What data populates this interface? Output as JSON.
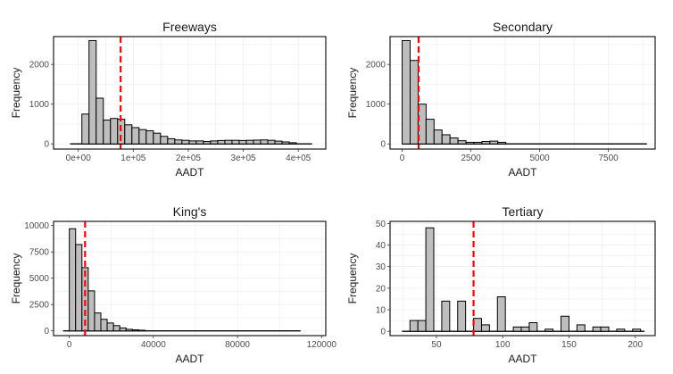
{
  "chart_data": [
    {
      "type": "bar",
      "title": "Freeways",
      "xlabel": "AADT",
      "ylabel": "Frequency",
      "xlim": [
        -45000,
        450000
      ],
      "ylim": [
        -130,
        2700
      ],
      "xticks": [
        0,
        100000,
        200000,
        300000,
        400000
      ],
      "xtick_labels": [
        "0e+00",
        "1e+05",
        "2e+05",
        "3e+05",
        "4e+05"
      ],
      "yticks": [
        0,
        1000,
        2000
      ],
      "ytick_labels": [
        "0",
        "1000",
        "2000"
      ],
      "bin_width": 13000,
      "bin_centers": [
        13000,
        26000,
        39000,
        52000,
        65000,
        78000,
        91000,
        104000,
        117000,
        130000,
        143000,
        156000,
        169000,
        182000,
        195000,
        208000,
        221000,
        234000,
        247000,
        260000,
        273000,
        286000,
        299000,
        312000,
        325000,
        338000,
        351000,
        364000,
        377000,
        390000
      ],
      "values": [
        750,
        2600,
        1150,
        600,
        640,
        620,
        480,
        410,
        360,
        330,
        270,
        190,
        130,
        100,
        90,
        75,
        75,
        60,
        75,
        85,
        90,
        90,
        85,
        90,
        95,
        100,
        90,
        70,
        50,
        30
      ],
      "baseline_range": [
        -15000,
        425000
      ],
      "mean_line": 77000,
      "grid": true,
      "mean_color": "#ff0000"
    },
    {
      "type": "bar",
      "title": "Secondary",
      "xlabel": "AADT",
      "ylabel": "Frequency",
      "xlim": [
        -440,
        9200
      ],
      "ylim": [
        -130,
        2700
      ],
      "xticks": [
        0,
        2500,
        5000,
        7500
      ],
      "xtick_labels": [
        "0",
        "2500",
        "5000",
        "7500"
      ],
      "yticks": [
        0,
        1000,
        2000
      ],
      "ytick_labels": [
        "0",
        "1000",
        "2000"
      ],
      "bin_width": 290,
      "bin_centers": [
        145,
        435,
        725,
        1015,
        1305,
        1595,
        1885,
        2175,
        2465,
        2755,
        3045,
        3335,
        3625
      ],
      "values": [
        2600,
        2100,
        1000,
        620,
        350,
        230,
        150,
        80,
        40,
        40,
        60,
        70,
        40
      ],
      "baseline_range": [
        0,
        8900
      ],
      "mean_line": 600,
      "grid": true,
      "mean_color": "#ff0000"
    },
    {
      "type": "bar",
      "title": "King's",
      "xlabel": "AADT",
      "ylabel": "Frequency",
      "xlim": [
        -7500,
        122000
      ],
      "ylim": [
        -450,
        10400
      ],
      "xticks": [
        0,
        40000,
        80000,
        120000
      ],
      "xtick_labels": [
        "0",
        "40000",
        "80000",
        "120000"
      ],
      "yticks": [
        0,
        2500,
        5000,
        7500,
        10000
      ],
      "ytick_labels": [
        "0",
        "2500",
        "5000",
        "7500",
        "10000"
      ],
      "bin_width": 3000,
      "bin_centers": [
        1500,
        4500,
        7500,
        10500,
        13500,
        16500,
        19500,
        22500,
        25500,
        28500,
        31500,
        34500
      ],
      "values": [
        9700,
        8200,
        6000,
        3800,
        1700,
        1100,
        750,
        500,
        280,
        150,
        100,
        60
      ],
      "baseline_range": [
        -3000,
        110000
      ],
      "mean_line": 7500,
      "grid": true,
      "mean_color": "#ff0000"
    },
    {
      "type": "bar",
      "title": "Tertiary",
      "xlabel": "AADT",
      "ylabel": "Frequency",
      "xlim": [
        15,
        215
      ],
      "ylim": [
        -2,
        51
      ],
      "xticks": [
        50,
        100,
        150,
        200
      ],
      "xtick_labels": [
        "50",
        "100",
        "150",
        "200"
      ],
      "yticks": [
        0,
        10,
        20,
        30,
        40,
        50
      ],
      "ytick_labels": [
        "0",
        "10",
        "20",
        "30",
        "40",
        "50"
      ],
      "bin_width": 6,
      "bin_centers": [
        33,
        39,
        45,
        51,
        57,
        63,
        69,
        75,
        81,
        87,
        93,
        99,
        105,
        111,
        117,
        123,
        129,
        135,
        141,
        147,
        153,
        159,
        165,
        171,
        177,
        183,
        189,
        195,
        201
      ],
      "values": [
        5,
        5,
        48,
        0,
        14,
        0,
        14,
        0,
        6,
        3,
        0,
        16,
        0,
        2,
        2,
        4,
        0,
        1,
        0,
        7,
        0,
        3,
        0,
        2,
        2,
        0,
        1,
        0,
        1
      ],
      "baseline_range": [
        24,
        207
      ],
      "mean_line": 78,
      "grid": true,
      "mean_color": "#ff0000"
    }
  ]
}
